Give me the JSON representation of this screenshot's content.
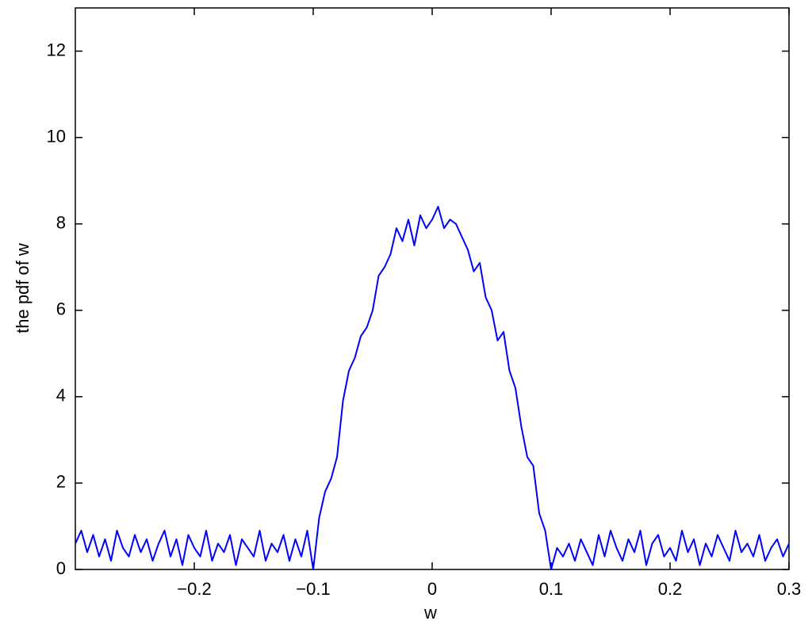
{
  "chart_data": {
    "type": "line",
    "xlabel": "w",
    "ylabel": "the pdf of w",
    "color": "#0000ff",
    "xlim": [
      -0.3,
      0.3
    ],
    "xticks": [
      {
        "value": -0.2,
        "label": "−0.2"
      },
      {
        "value": -0.1,
        "label": "−0.1"
      },
      0,
      0.1,
      0.2,
      0.3
    ],
    "ylim": [
      0,
      13
    ],
    "yticks": [
      0,
      2,
      4,
      6,
      8,
      10,
      12
    ],
    "grid": false,
    "x": [
      -0.3,
      -0.295,
      -0.29,
      -0.285,
      -0.28,
      -0.275,
      -0.27,
      -0.265,
      -0.26,
      -0.255,
      -0.25,
      -0.245,
      -0.24,
      -0.235,
      -0.23,
      -0.225,
      -0.22,
      -0.215,
      -0.21,
      -0.205,
      -0.2,
      -0.195,
      -0.19,
      -0.185,
      -0.18,
      -0.175,
      -0.17,
      -0.165,
      -0.16,
      -0.155,
      -0.15,
      -0.145,
      -0.14,
      -0.135,
      -0.13,
      -0.125,
      -0.12,
      -0.115,
      -0.11,
      -0.105,
      -0.1,
      -0.095,
      -0.09,
      -0.085,
      -0.08,
      -0.075,
      -0.07,
      -0.065,
      -0.06,
      -0.055,
      -0.05,
      -0.045,
      -0.04,
      -0.035,
      -0.03,
      -0.025,
      -0.02,
      -0.015,
      -0.01,
      -0.005,
      0,
      0.005,
      0.01,
      0.015,
      0.02,
      0.025,
      0.03,
      0.035,
      0.04,
      0.045,
      0.05,
      0.055,
      0.06,
      0.065,
      0.07,
      0.075,
      0.08,
      0.085,
      0.09,
      0.095,
      0.1,
      0.105,
      0.11,
      0.115,
      0.12,
      0.125,
      0.13,
      0.135,
      0.14,
      0.145,
      0.15,
      0.155,
      0.16,
      0.165,
      0.17,
      0.175,
      0.18,
      0.185,
      0.19,
      0.195,
      0.2,
      0.205,
      0.21,
      0.215,
      0.22,
      0.225,
      0.23,
      0.235,
      0.24,
      0.245,
      0.25,
      0.255,
      0.26,
      0.265,
      0.27,
      0.275,
      0.28,
      0.285,
      0.29,
      0.295,
      0.3
    ],
    "values": [
      0.6,
      0.9,
      0.4,
      0.8,
      0.3,
      0.7,
      0.2,
      0.9,
      0.5,
      0.3,
      0.8,
      0.4,
      0.7,
      0.2,
      0.6,
      0.9,
      0.3,
      0.7,
      0.1,
      0.8,
      0.5,
      0.3,
      0.9,
      0.2,
      0.6,
      0.4,
      0.8,
      0.1,
      0.7,
      0.5,
      0.3,
      0.9,
      0.2,
      0.6,
      0.4,
      0.8,
      0.2,
      0.7,
      0.3,
      0.9,
      0,
      1.2,
      1.8,
      2.1,
      2.6,
      3.9,
      4.6,
      4.9,
      5.4,
      5.6,
      6.0,
      6.8,
      7.0,
      7.3,
      7.9,
      7.6,
      8.1,
      7.5,
      8.2,
      7.9,
      8.1,
      8.4,
      7.9,
      8.1,
      8.0,
      7.7,
      7.4,
      6.9,
      7.1,
      6.3,
      6.0,
      5.3,
      5.5,
      4.6,
      4.2,
      3.3,
      2.6,
      2.4,
      1.3,
      0.9,
      0,
      0.5,
      0.3,
      0.6,
      0.2,
      0.7,
      0.4,
      0.1,
      0.8,
      0.3,
      0.9,
      0.5,
      0.2,
      0.7,
      0.4,
      0.9,
      0.1,
      0.6,
      0.8,
      0.3,
      0.5,
      0.2,
      0.9,
      0.4,
      0.7,
      0.1,
      0.6,
      0.3,
      0.8,
      0.5,
      0.2,
      0.9,
      0.4,
      0.6,
      0.3,
      0.8,
      0.2,
      0.5,
      0.7,
      0.3,
      0.6
    ]
  }
}
